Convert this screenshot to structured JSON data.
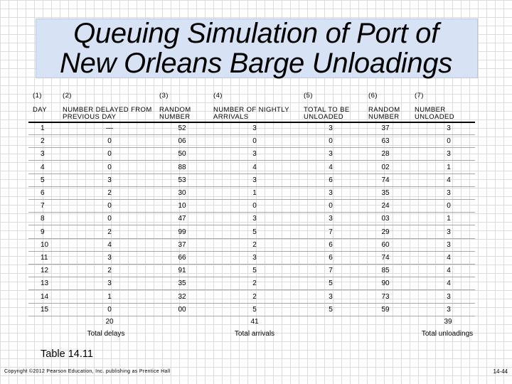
{
  "title_line1": "Queuing Simulation of Port of",
  "title_line2": "New Orleans Barge Unloadings",
  "columns": [
    {
      "number": "(1)",
      "label": "DAY"
    },
    {
      "number": "(2)",
      "label": "NUMBER DELAYED FROM PREVIOUS DAY"
    },
    {
      "number": "(3)",
      "label": "RANDOM NUMBER"
    },
    {
      "number": "(4)",
      "label": "NUMBER OF NIGHTLY ARRIVALS"
    },
    {
      "number": "(5)",
      "label": "TOTAL TO BE UNLOADED"
    },
    {
      "number": "(6)",
      "label": "RANDOM NUMBER"
    },
    {
      "number": "(7)",
      "label": "NUMBER UNLOADED"
    }
  ],
  "rows": [
    [
      "1",
      "—",
      "52",
      "3",
      "3",
      "37",
      "3"
    ],
    [
      "2",
      "0",
      "06",
      "0",
      "0",
      "63",
      "0"
    ],
    [
      "3",
      "0",
      "50",
      "3",
      "3",
      "28",
      "3"
    ],
    [
      "4",
      "0",
      "88",
      "4",
      "4",
      "02",
      "1"
    ],
    [
      "5",
      "3",
      "53",
      "3",
      "6",
      "74",
      "4"
    ],
    [
      "6",
      "2",
      "30",
      "1",
      "3",
      "35",
      "3"
    ],
    [
      "7",
      "0",
      "10",
      "0",
      "0",
      "24",
      "0"
    ],
    [
      "8",
      "0",
      "47",
      "3",
      "3",
      "03",
      "1"
    ],
    [
      "9",
      "2",
      "99",
      "5",
      "7",
      "29",
      "3"
    ],
    [
      "10",
      "4",
      "37",
      "2",
      "6",
      "60",
      "3"
    ],
    [
      "11",
      "3",
      "66",
      "3",
      "6",
      "74",
      "4"
    ],
    [
      "12",
      "2",
      "91",
      "5",
      "7",
      "85",
      "4"
    ],
    [
      "13",
      "3",
      "35",
      "2",
      "5",
      "90",
      "4"
    ],
    [
      "14",
      "1",
      "32",
      "2",
      "3",
      "73",
      "3"
    ],
    [
      "15",
      "0",
      "00",
      "5",
      "5",
      "59",
      "3"
    ]
  ],
  "totals": {
    "delays_value": "20",
    "delays_label": "Total delays",
    "arrivals_value": "41",
    "arrivals_label": "Total arrivals",
    "unloadings_value": "39",
    "unloadings_label": "Total unloadings"
  },
  "caption": "Table 14.11",
  "copyright": "Copyright ©2012 Pearson Education, Inc. publishing as Prentice Hall",
  "page_number": "14-44"
}
